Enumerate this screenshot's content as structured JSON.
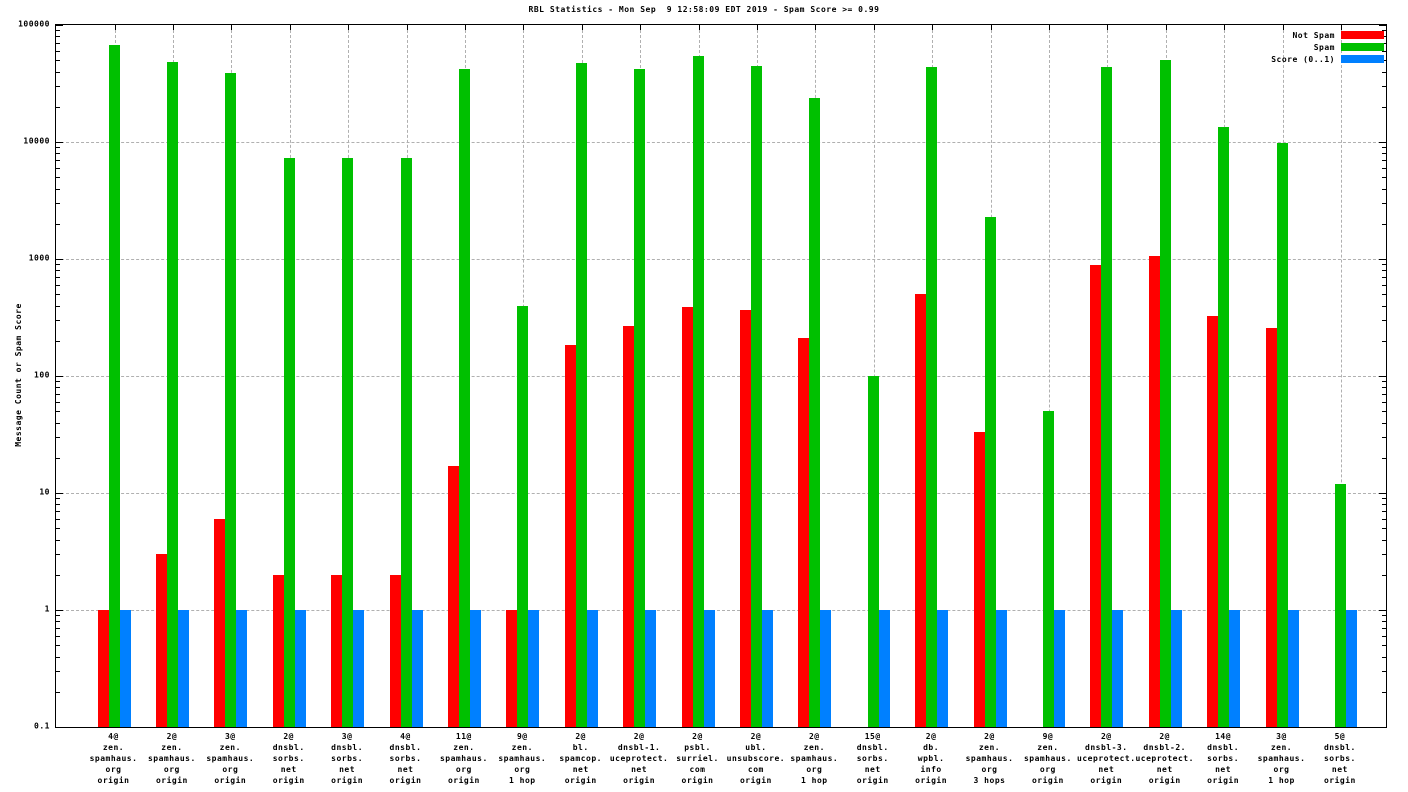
{
  "title": "RBL Statistics - Mon Sep  9 12:58:09 EDT 2019 - Spam Score >= 0.99",
  "chart_data": {
    "type": "bar",
    "title": "RBL Statistics - Mon Sep  9 12:58:09 EDT 2019 - Spam Score >= 0.99",
    "xlabel": "",
    "ylabel": "Message Count or Spam Score",
    "y_scale": "log10",
    "ylim": [
      0.1,
      100000
    ],
    "y_tick_labels": [
      "0.1",
      "1",
      "10",
      "100",
      "1000",
      "10000",
      "100000"
    ],
    "grid": true,
    "legend_position": "top-right-inside",
    "categories": [
      [
        "4@",
        "zen.",
        "spamhaus.",
        "org",
        "origin"
      ],
      [
        "2@",
        "zen.",
        "spamhaus.",
        "org",
        "origin"
      ],
      [
        "3@",
        "zen.",
        "spamhaus.",
        "org",
        "origin"
      ],
      [
        "2@",
        "dnsbl.",
        "sorbs.",
        "net",
        "origin"
      ],
      [
        "3@",
        "dnsbl.",
        "sorbs.",
        "net",
        "origin"
      ],
      [
        "4@",
        "dnsbl.",
        "sorbs.",
        "net",
        "origin"
      ],
      [
        "11@",
        "zen.",
        "spamhaus.",
        "org",
        "origin"
      ],
      [
        "9@",
        "zen.",
        "spamhaus.",
        "org",
        "1 hop"
      ],
      [
        "2@",
        "bl.",
        "spamcop.",
        "net",
        "origin"
      ],
      [
        "2@",
        "dnsbl-1.",
        "uceprotect.",
        "net",
        "origin"
      ],
      [
        "2@",
        "psbl.",
        "surriel.",
        "com",
        "origin"
      ],
      [
        "2@",
        "ubl.",
        "unsubscore.",
        "com",
        "origin"
      ],
      [
        "2@",
        "zen.",
        "spamhaus.",
        "org",
        "1 hop"
      ],
      [
        "15@",
        "dnsbl.",
        "sorbs.",
        "net",
        "origin"
      ],
      [
        "2@",
        "db.",
        "wpbl.",
        "info",
        "origin"
      ],
      [
        "2@",
        "zen.",
        "spamhaus.",
        "org",
        "3 hops"
      ],
      [
        "9@",
        "zen.",
        "spamhaus.",
        "org",
        "origin"
      ],
      [
        "2@",
        "dnsbl-3.",
        "uceprotect.",
        "net",
        "origin"
      ],
      [
        "2@",
        "dnsbl-2.",
        "uceprotect.",
        "net",
        "origin"
      ],
      [
        "14@",
        "dnsbl.",
        "sorbs.",
        "net",
        "origin"
      ],
      [
        "3@",
        "zen.",
        "spamhaus.",
        "org",
        "1 hop"
      ],
      [
        "5@",
        "dnsbl.",
        "sorbs.",
        "net",
        "origin"
      ]
    ],
    "series": [
      {
        "name": "Not Spam",
        "color": "#ff0000",
        "values": [
          1,
          3,
          6,
          2,
          2,
          2,
          17,
          1,
          185,
          265,
          390,
          370,
          210,
          null,
          500,
          33,
          null,
          890,
          1060,
          325,
          255,
          null
        ]
      },
      {
        "name": "Spam",
        "color": "#00c000",
        "values": [
          68000,
          48000,
          39000,
          7300,
          7300,
          7300,
          42000,
          400,
          47000,
          42000,
          54000,
          45000,
          24000,
          100,
          44000,
          2300,
          50,
          44000,
          50000,
          13500,
          9800,
          12
        ]
      },
      {
        "name": "Score (0..1)",
        "color": "#0080ff",
        "values": [
          1,
          1,
          1,
          1,
          1,
          1,
          1,
          1,
          1,
          1,
          1,
          1,
          1,
          1,
          1,
          1,
          1,
          1,
          1,
          1,
          1,
          1
        ]
      }
    ]
  }
}
